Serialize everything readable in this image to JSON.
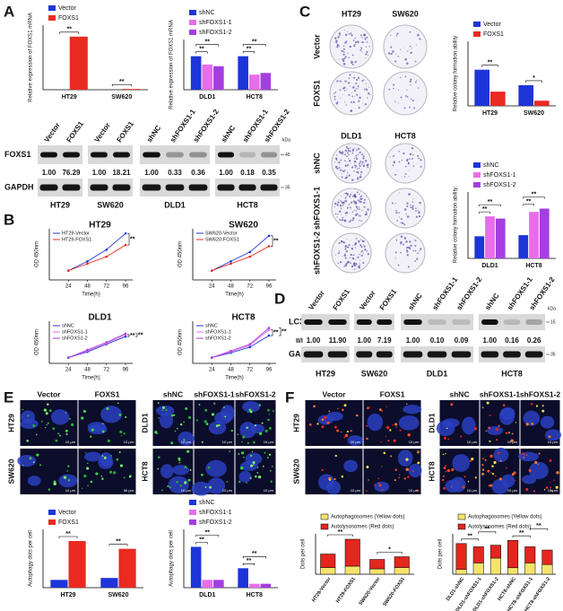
{
  "panels": [
    "A",
    "B",
    "C",
    "D",
    "E",
    "F"
  ],
  "chart_data": [
    {
      "type": "bar",
      "ylabel": "Relative expression of FOXS1 mRNA",
      "categories": [
        "HT29",
        "SW620"
      ],
      "series": [
        {
          "name": "Vector",
          "color": "#1d35d8",
          "values": [
            1,
            1
          ]
        },
        {
          "name": "FOXS1",
          "color": "#ea2a20",
          "values": [
            2300,
            32
          ]
        }
      ],
      "ylim": [
        0,
        2800
      ],
      "annotations": [
        "**",
        "**"
      ]
    },
    {
      "type": "bar",
      "ylabel": "Relative expression of FOXS1 mRNA",
      "categories": [
        "DLD1",
        "HCT8"
      ],
      "series": [
        {
          "name": "shNC",
          "color": "#1d35d8",
          "values": [
            1.0,
            1.0
          ]
        },
        {
          "name": "shFOXS1-1",
          "color": "#e86de8",
          "values": [
            0.75,
            0.45
          ]
        },
        {
          "name": "shFOXS1-2",
          "color": "#a43ee0",
          "values": [
            0.7,
            0.5
          ]
        }
      ],
      "ylim": [
        0,
        1.5
      ],
      "annotations": [
        "**",
        "**",
        "**",
        "**"
      ]
    },
    {
      "type": "bar",
      "ylabel": "Relative colony formation ability",
      "categories": [
        "HT29",
        "SW620"
      ],
      "series": [
        {
          "name": "Vector",
          "color": "#1d35d8",
          "values": [
            14,
            8
          ]
        },
        {
          "name": "FOXS1",
          "color": "#ea2a20",
          "values": [
            5.5,
            2
          ]
        }
      ],
      "ylim": [
        0,
        25
      ],
      "annotations": [
        "**",
        "*"
      ]
    },
    {
      "type": "bar",
      "ylabel": "Relative colony formation ability",
      "categories": [
        "DLD1",
        "HCT8"
      ],
      "series": [
        {
          "name": "shNC",
          "color": "#1d35d8",
          "values": [
            20,
            21
          ]
        },
        {
          "name": "shFOXS1-1",
          "color": "#e86de8",
          "values": [
            38,
            42
          ]
        },
        {
          "name": "shFOXS1-2",
          "color": "#a43ee0",
          "values": [
            36,
            45
          ]
        }
      ],
      "ylim": [
        0,
        60
      ],
      "annotations": [
        "**",
        "**",
        "**",
        "**"
      ]
    },
    {
      "type": "line",
      "title": "HT29",
      "xlabel": "Time(h)",
      "ylabel": "OD 450nm",
      "x": [
        24,
        48,
        72,
        96
      ],
      "series": [
        {
          "name": "HT29-Vector",
          "color": "#1d35d8",
          "values": [
            0.4,
            0.8,
            1.3,
            2.0
          ]
        },
        {
          "name": "HT29-FOXS1",
          "color": "#ea2a20",
          "values": [
            0.4,
            0.7,
            1.0,
            1.5
          ]
        }
      ],
      "xlim": [
        0,
        105
      ],
      "ylim": [
        0,
        2.2
      ],
      "xticks": [
        24,
        48,
        72,
        96
      ],
      "annotations": [
        "**"
      ]
    },
    {
      "type": "line",
      "title": "SW620",
      "xlabel": "Time(h)",
      "ylabel": "OD 450nm",
      "x": [
        24,
        48,
        72,
        96
      ],
      "series": [
        {
          "name": "SW620-Vector",
          "color": "#1d35d8",
          "values": [
            0.4,
            0.8,
            1.2,
            1.9
          ]
        },
        {
          "name": "SW620-FOXS1",
          "color": "#ea2a20",
          "values": [
            0.4,
            0.7,
            1.0,
            1.45
          ]
        }
      ],
      "xlim": [
        0,
        105
      ],
      "ylim": [
        0,
        2.2
      ],
      "xticks": [
        24,
        48,
        72,
        96
      ],
      "annotations": [
        "**"
      ]
    },
    {
      "type": "line",
      "title": "DLD1",
      "xlabel": "Time(h)",
      "ylabel": "OD 450nm",
      "x": [
        24,
        48,
        72,
        96
      ],
      "series": [
        {
          "name": "shNC",
          "color": "#1d35d8",
          "values": [
            0.3,
            0.6,
            1.0,
            1.4
          ]
        },
        {
          "name": "shFOXS1-1",
          "color": "#e86de8",
          "values": [
            0.3,
            0.65,
            1.05,
            1.5
          ]
        },
        {
          "name": "shFOXS1-2",
          "color": "#a43ee0",
          "values": [
            0.3,
            0.7,
            1.1,
            1.55
          ]
        }
      ],
      "xlim": [
        0,
        105
      ],
      "ylim": [
        0,
        2.2
      ],
      "xticks": [
        24,
        48,
        72,
        96
      ],
      "annotations": [
        "**",
        "**"
      ]
    },
    {
      "type": "line",
      "title": "HCT8",
      "xlabel": "Time(h)",
      "ylabel": "OD 450nm",
      "x": [
        24,
        48,
        72,
        96
      ],
      "series": [
        {
          "name": "shNC",
          "color": "#1d35d8",
          "values": [
            0.3,
            0.55,
            0.85,
            1.45
          ]
        },
        {
          "name": "shFOXS1-1",
          "color": "#e86de8",
          "values": [
            0.3,
            0.6,
            0.95,
            1.75
          ]
        },
        {
          "name": "shFOXS1-2",
          "color": "#a43ee0",
          "values": [
            0.3,
            0.65,
            1.0,
            1.85
          ]
        }
      ],
      "xlim": [
        0,
        105
      ],
      "ylim": [
        0,
        2.2
      ],
      "xticks": [
        24,
        48,
        72,
        96
      ],
      "annotations": [
        "**",
        "**"
      ]
    },
    {
      "type": "bar",
      "ylabel": "Autophagy dots per cell",
      "categories": [
        "HT29",
        "SW620"
      ],
      "series": [
        {
          "name": "Vector",
          "color": "#1d35d8",
          "values": [
            4,
            5
          ]
        },
        {
          "name": "FOXS1",
          "color": "#ea2a20",
          "values": [
            24,
            20
          ]
        }
      ],
      "ylim": [
        0,
        30
      ],
      "annotations": [
        "**",
        "**"
      ]
    },
    {
      "type": "bar",
      "ylabel": "Autophagy dots per cell",
      "categories": [
        "DLD1",
        "HCT8"
      ],
      "series": [
        {
          "name": "shNC",
          "color": "#1d35d8",
          "values": [
            21,
            10
          ]
        },
        {
          "name": "shFOXS1-1",
          "color": "#e86de8",
          "values": [
            4,
            2
          ]
        },
        {
          "name": "shFOXS1-2",
          "color": "#a43ee0",
          "values": [
            4,
            2
          ]
        }
      ],
      "ylim": [
        0,
        30
      ],
      "annotations": [
        "**",
        "**",
        "**",
        "**"
      ]
    },
    {
      "type": "bar",
      "stacked": true,
      "ylabel": "Dots per cell",
      "categories": [
        "HT29-Vector",
        "HT29-FOXS1",
        "SW620-Vector",
        "SW620-FOXS1"
      ],
      "series": [
        {
          "name": "Autophagosomes (Yellow dots)",
          "color": "#f4e46a",
          "values": [
            10,
            12,
            8,
            10
          ]
        },
        {
          "name": "Autolysosomes (Red dots)",
          "color": "#e3261e",
          "values": [
            20,
            40,
            14,
            16
          ]
        }
      ],
      "ylim": [
        0,
        60
      ],
      "annotations": [
        "**",
        "*"
      ]
    },
    {
      "type": "bar",
      "stacked": true,
      "ylabel": "Dots per cell",
      "categories": [
        "DLD1-shNC",
        "DLD1-shFOXS1-1",
        "DLD1-shFOXS1-2",
        "HCT8-shNC",
        "HCT8-shFOXS1-1",
        "HCT8-shFOXS1-2"
      ],
      "series": [
        {
          "name": "Autophagosomes (Yellow dots)",
          "color": "#f4e46a",
          "values": [
            3,
            7,
            10,
            4,
            7,
            6
          ]
        },
        {
          "name": "Autolysosomes (Red dots)",
          "color": "#e3261e",
          "values": [
            16,
            10,
            8,
            17,
            10,
            9
          ]
        }
      ],
      "ylim": [
        0,
        25
      ],
      "annotations": [
        "**",
        "**",
        "**",
        "**"
      ]
    }
  ],
  "blots": [
    {
      "groups": [
        "HT29",
        "SW620",
        "DLD1",
        "HCT8"
      ],
      "lanes": [
        [
          "Vector",
          "FOXS1"
        ],
        [
          "Vector",
          "FOXS1"
        ],
        [
          "shNC",
          "shFOXS1-1",
          "shFOXS1-2"
        ],
        [
          "shNC",
          "shFOXS1-1",
          "shFOXS1-2"
        ]
      ],
      "rows": [
        "FOXS1",
        "GAPDH"
      ],
      "values": [
        "1.00",
        "76.29",
        "1.00",
        "18.21",
        "1.00",
        "0.33",
        "0.36",
        "1.00",
        "0.18",
        "0.35"
      ],
      "unit": "kDa",
      "markers": [
        "40",
        "35"
      ]
    },
    {
      "groups": [
        "HT29",
        "SW620",
        "DLD1",
        "HCT8"
      ],
      "lanes": [
        [
          "Vector",
          "FOXS1"
        ],
        [
          "Vector",
          "FOXS1"
        ],
        [
          "shNC",
          "shFOXS1-1",
          "shFOXS1-2"
        ],
        [
          "shNC",
          "shFOXS1-1",
          "shFOXS1-2"
        ]
      ],
      "rows": [
        "LC3B",
        "GAPDH"
      ],
      "ratio_label": "II/I",
      "values": [
        "1.00",
        "11.90",
        "1.00",
        "7.19",
        "1.00",
        "0.10",
        "0.09",
        "1.00",
        "0.16",
        "0.26"
      ],
      "unit": "kDa",
      "markers": [
        "15",
        "35"
      ]
    }
  ],
  "colony_plates": [
    {
      "columns": [
        "HT29",
        "SW620"
      ],
      "rows": [
        "Vector",
        "FOXS1"
      ]
    },
    {
      "columns": [
        "DLD1",
        "HCT8"
      ],
      "rows": [
        "shNC",
        "shFOXS1-1",
        "shFOXS1-2"
      ]
    }
  ],
  "micrographs": [
    {
      "groups": [
        {
          "columns": [
            "Vector",
            "FOXS1"
          ],
          "rows": [
            "HT29",
            "SW620"
          ]
        },
        {
          "columns": [
            "shNC",
            "shFOXS1-1",
            "shFOXS1-2"
          ],
          "rows": [
            "DLD1",
            "HCT8"
          ]
        }
      ],
      "scale_bar": "10 μm"
    },
    {
      "groups": [
        {
          "columns": [
            "Vector",
            "FOXS1"
          ],
          "rows": [
            "HT29",
            "SW620"
          ]
        },
        {
          "columns": [
            "shNC",
            "shFOXS1-1",
            "shFOXS1-2"
          ],
          "rows": [
            "DLD1",
            "HCT8"
          ]
        }
      ],
      "scale_bar": "10 μm"
    }
  ]
}
